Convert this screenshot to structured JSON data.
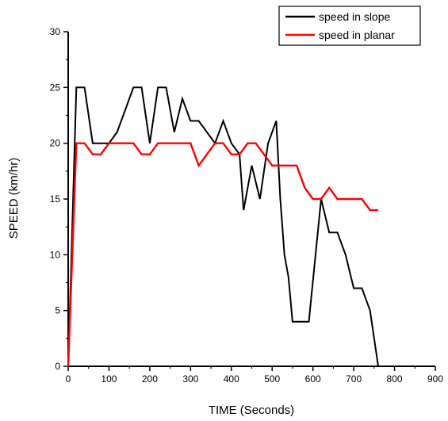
{
  "chart_data": {
    "type": "line",
    "xlabel": "TIME (Seconds)",
    "ylabel": "SPEED (km/hr)",
    "xlim": [
      0,
      900
    ],
    "ylim": [
      0,
      30
    ],
    "x_ticks": [
      "0",
      "100",
      "200",
      "300",
      "400",
      "500",
      "600",
      "700",
      "800",
      "900"
    ],
    "y_ticks": [
      "0",
      "5",
      "10",
      "15",
      "20",
      "25",
      "30"
    ],
    "grid": false,
    "legend_position": "top-right",
    "series": [
      {
        "name": "speed in slope",
        "color": "#000000",
        "x": [
          0,
          20,
          40,
          60,
          80,
          100,
          120,
          140,
          160,
          180,
          200,
          220,
          240,
          260,
          280,
          300,
          320,
          340,
          360,
          380,
          400,
          420,
          430,
          450,
          470,
          490,
          510,
          520,
          530,
          540,
          550,
          570,
          590,
          620,
          640,
          660,
          680,
          700,
          720,
          740,
          760
        ],
        "y": [
          0,
          25,
          25,
          20,
          20,
          20,
          21,
          23,
          25,
          25,
          20,
          25,
          25,
          21,
          24,
          22,
          22,
          21,
          20,
          22,
          20,
          19,
          14,
          18,
          15,
          20,
          22,
          15,
          10,
          8,
          4,
          4,
          4,
          15,
          12,
          12,
          10,
          7,
          7,
          5,
          0
        ]
      },
      {
        "name": "speed in planar",
        "color": "#ff0000",
        "x": [
          0,
          20,
          40,
          60,
          80,
          100,
          120,
          140,
          160,
          180,
          200,
          220,
          240,
          260,
          280,
          300,
          320,
          340,
          360,
          380,
          400,
          420,
          440,
          460,
          480,
          500,
          520,
          540,
          560,
          580,
          600,
          620,
          640,
          660,
          680,
          700,
          720,
          740,
          760
        ],
        "y": [
          0,
          20,
          20,
          19,
          19,
          20,
          20,
          20,
          20,
          19,
          19,
          20,
          20,
          20,
          20,
          20,
          18,
          19,
          20,
          20,
          19,
          19,
          20,
          20,
          19,
          18,
          18,
          18,
          18,
          16,
          15,
          15,
          16,
          15,
          15,
          15,
          15,
          14,
          14
        ]
      }
    ]
  }
}
